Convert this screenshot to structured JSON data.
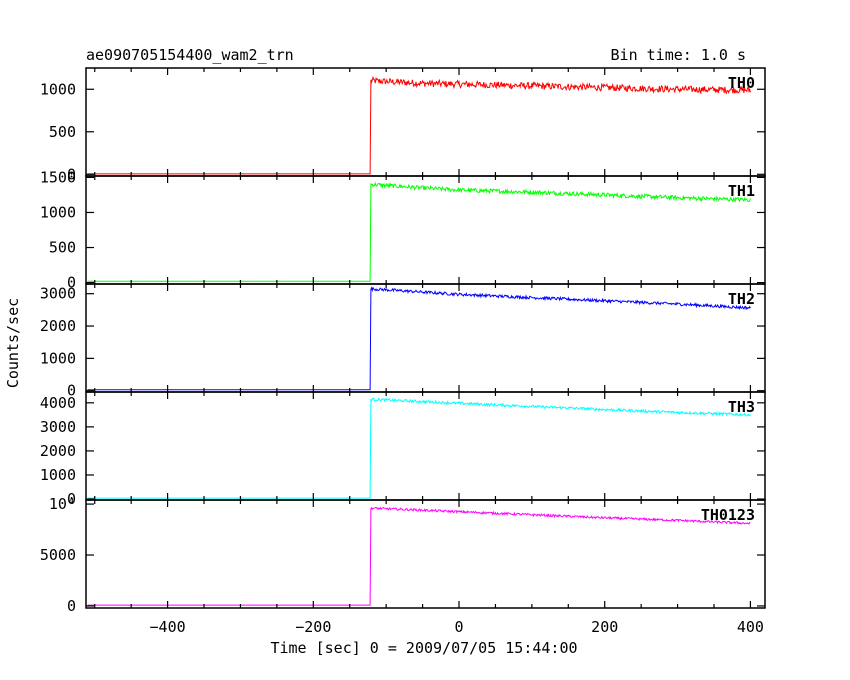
{
  "header": {
    "title": "ae090705154400_wam2_trn",
    "bin_time": "Bin time: 1.0 s"
  },
  "axes": {
    "xlabel": "Time [sec] 0 = 2009/07/05 15:44:00",
    "ylabel": "Counts/sec"
  },
  "chart_data": {
    "type": "line",
    "title": "ae090705154400_wam2_trn",
    "subtitle": "Bin time: 1.0 s",
    "xlabel": "Time [sec] 0 = 2009/07/05 15:44:00",
    "ylabel": "Counts/sec",
    "xlim": [
      -512,
      420
    ],
    "x_ticks": [
      -400,
      -200,
      0,
      200,
      400
    ],
    "onset_x": -122,
    "x_end": 400,
    "panels": [
      {
        "name": "TH0",
        "color": "#ff0000",
        "ylim": [
          -20,
          1250
        ],
        "y_ticks": [
          0,
          500,
          1000
        ],
        "y_tick_labels": [
          "0",
          "500",
          "1000"
        ],
        "baseline": 5,
        "points": [
          [
            -120,
            1100
          ],
          [
            -50,
            1070
          ],
          [
            0,
            1060
          ],
          [
            100,
            1040
          ],
          [
            200,
            1020
          ],
          [
            300,
            1000
          ],
          [
            400,
            990
          ]
        ],
        "noise": 40
      },
      {
        "name": "TH1",
        "color": "#00ff00",
        "ylim": [
          -20,
          1520
        ],
        "y_ticks": [
          0,
          500,
          1000,
          1500
        ],
        "y_tick_labels": [
          "0",
          "500",
          "1000",
          "1500"
        ],
        "baseline": 20,
        "points": [
          [
            -120,
            1400
          ],
          [
            -50,
            1350
          ],
          [
            0,
            1320
          ],
          [
            100,
            1290
          ],
          [
            200,
            1250
          ],
          [
            300,
            1210
          ],
          [
            400,
            1180
          ]
        ],
        "noise": 30
      },
      {
        "name": "TH2",
        "color": "#0000ff",
        "ylim": [
          -40,
          3300
        ],
        "y_ticks": [
          0,
          1000,
          2000,
          3000
        ],
        "y_tick_labels": [
          "0",
          "1000",
          "2000",
          "3000"
        ],
        "baseline": 30,
        "points": [
          [
            -120,
            3150
          ],
          [
            -50,
            3050
          ],
          [
            0,
            2980
          ],
          [
            100,
            2880
          ],
          [
            200,
            2780
          ],
          [
            300,
            2680
          ],
          [
            400,
            2560
          ]
        ],
        "noise": 45
      },
      {
        "name": "TH3",
        "color": "#00ffff",
        "ylim": [
          -40,
          4450
        ],
        "y_ticks": [
          0,
          1000,
          2000,
          3000,
          4000
        ],
        "y_tick_labels": [
          "0",
          "1000",
          "2000",
          "3000",
          "4000"
        ],
        "baseline": 40,
        "points": [
          [
            -120,
            4150
          ],
          [
            -50,
            4050
          ],
          [
            0,
            3980
          ],
          [
            100,
            3850
          ],
          [
            200,
            3720
          ],
          [
            300,
            3600
          ],
          [
            400,
            3500
          ]
        ],
        "noise": 55
      },
      {
        "name": "TH0123",
        "color": "#ff00ff",
        "ylim": [
          -200,
          10400
        ],
        "y_ticks": [
          0,
          5000,
          10000
        ],
        "y_tick_labels": [
          "0",
          "5000",
          "10⁴"
        ],
        "baseline": 80,
        "points": [
          [
            -120,
            9600
          ],
          [
            -50,
            9400
          ],
          [
            0,
            9250
          ],
          [
            100,
            8950
          ],
          [
            200,
            8650
          ],
          [
            300,
            8400
          ],
          [
            400,
            8100
          ]
        ],
        "noise": 110
      }
    ]
  }
}
